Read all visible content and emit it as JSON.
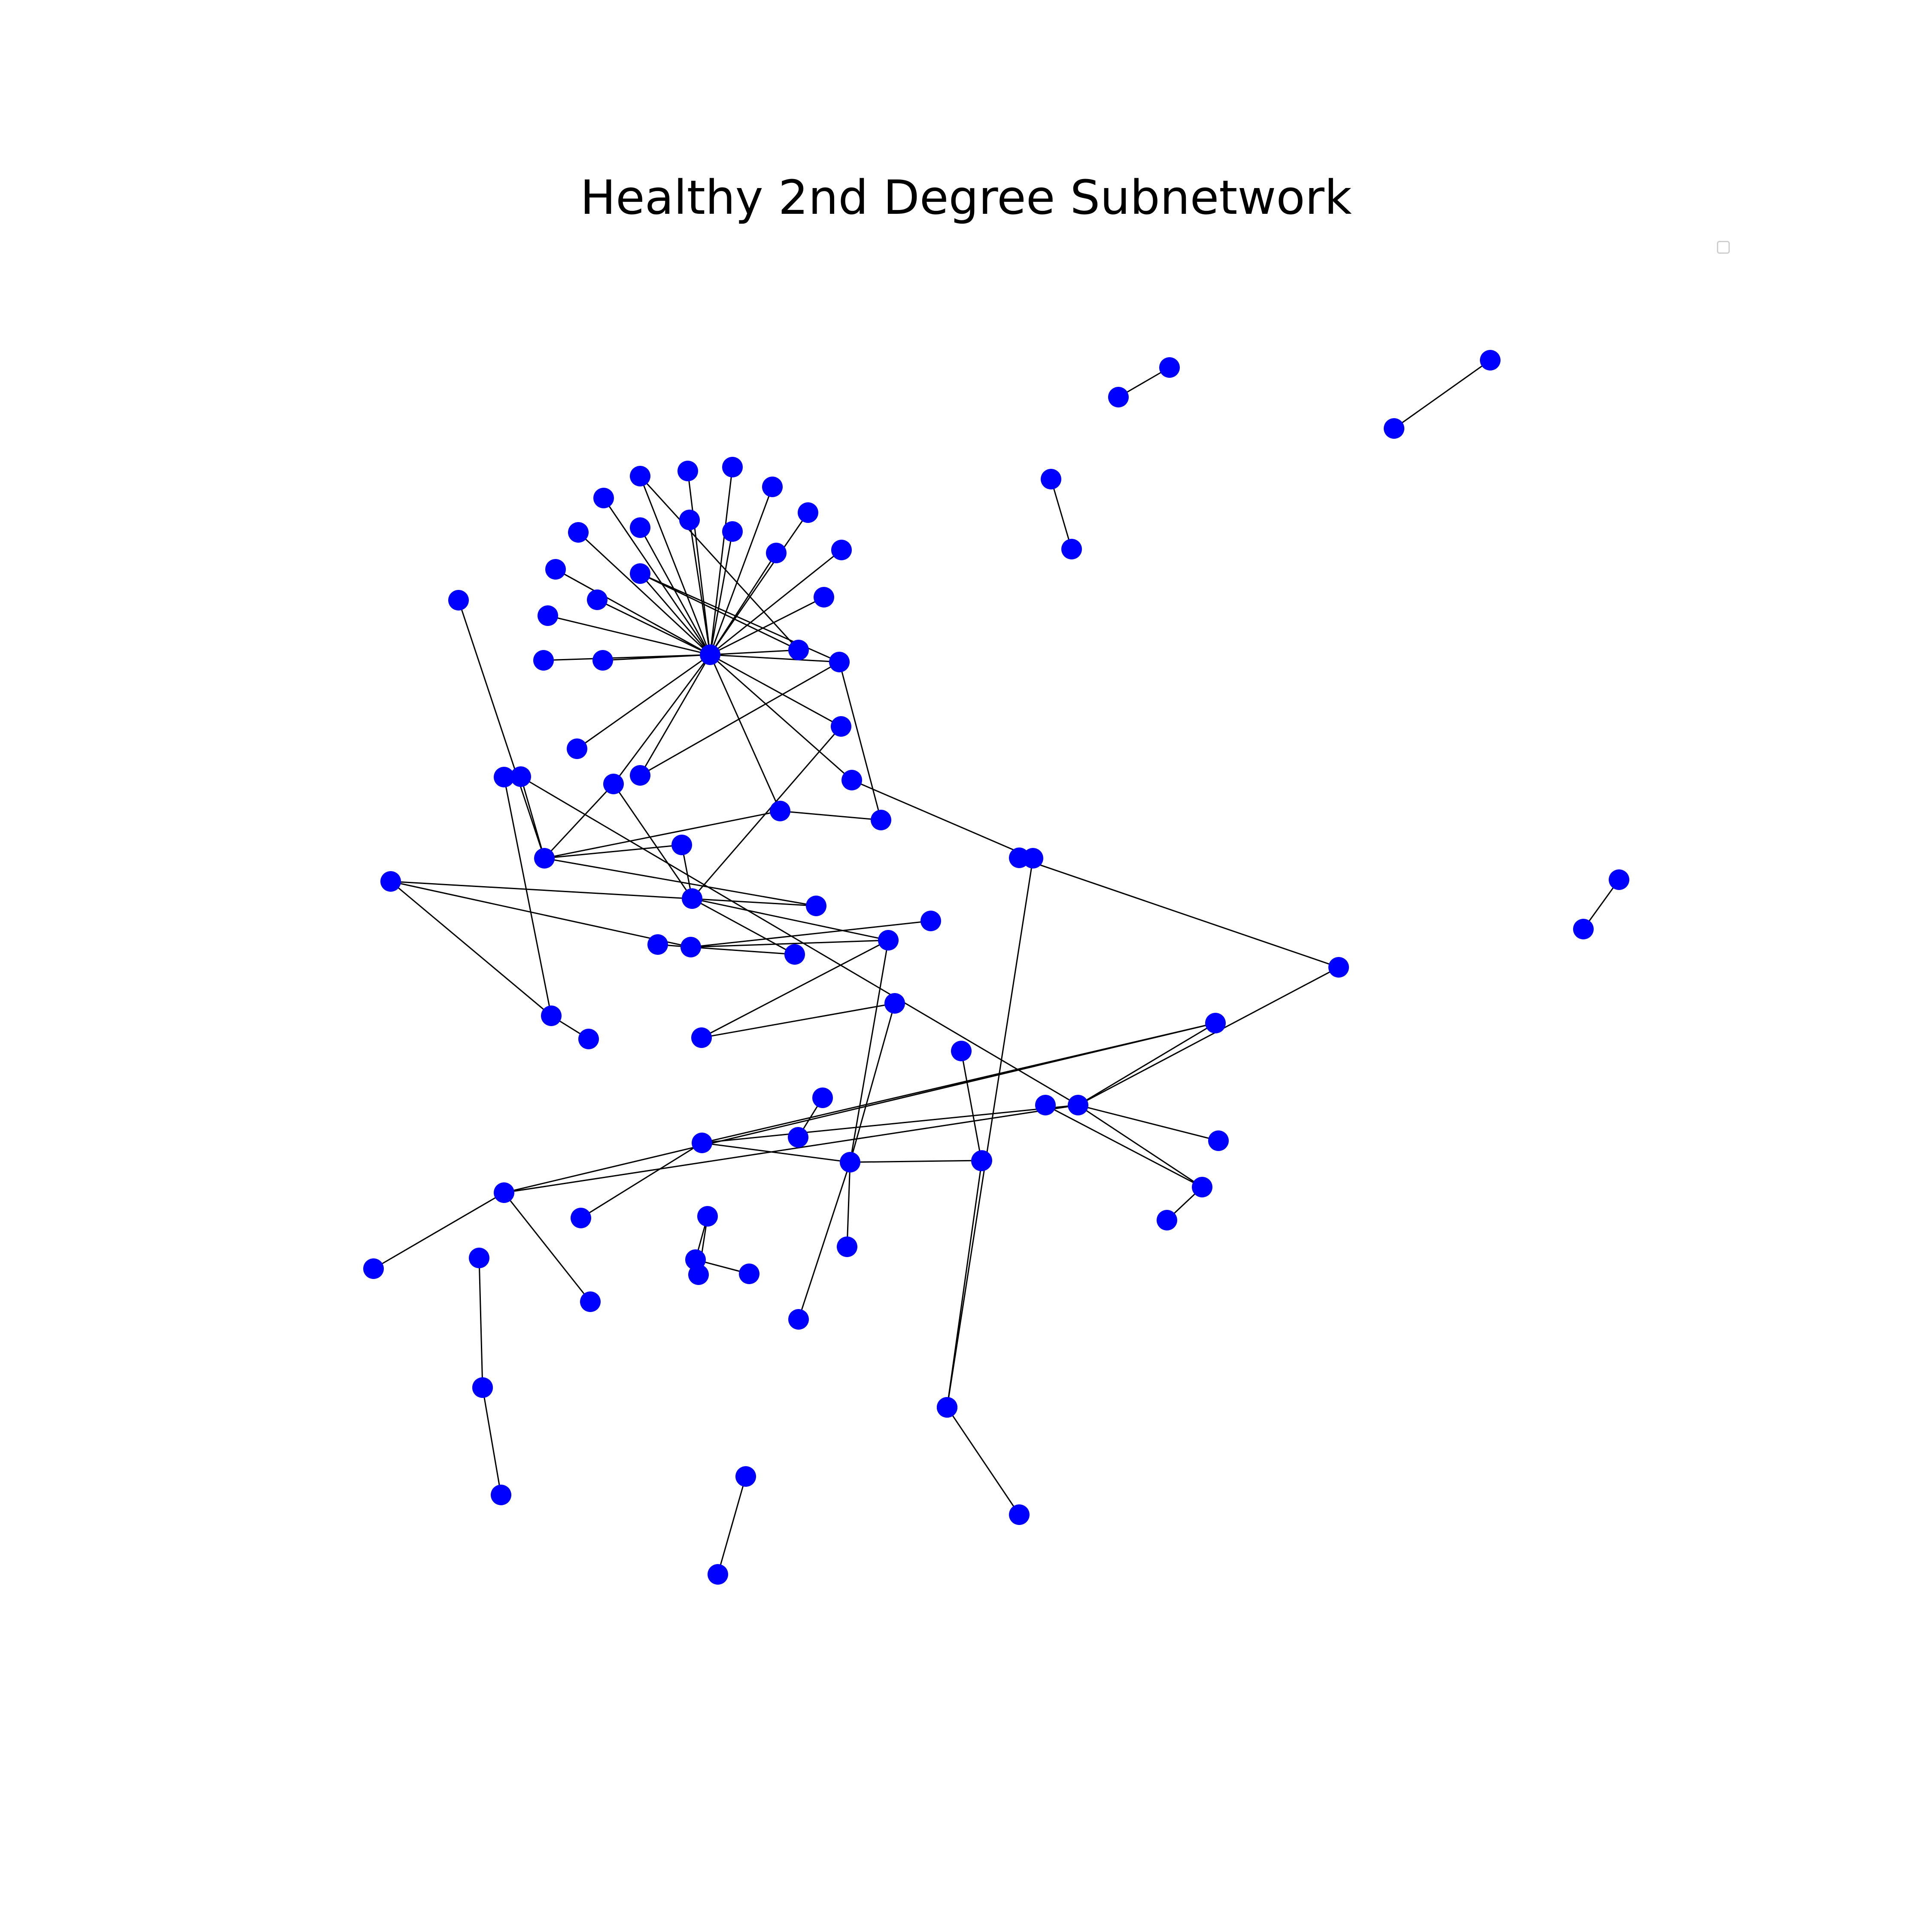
{
  "title": "Healthy 2nd Degree Subnetwork",
  "node_color": "#0000ff",
  "edge_color": "#000000",
  "legend": {
    "visible": true,
    "entries": []
  },
  "edges": [
    [
      "n0",
      "n1"
    ],
    [
      "n0",
      "n2"
    ],
    [
      "n0",
      "n3"
    ],
    [
      "n0",
      "n4"
    ],
    [
      "n0",
      "n5"
    ],
    [
      "n0",
      "n6"
    ],
    [
      "n0",
      "n7"
    ],
    [
      "n0",
      "n8"
    ],
    [
      "n0",
      "n9"
    ],
    [
      "n0",
      "n10"
    ],
    [
      "n0",
      "n11"
    ],
    [
      "n0",
      "n12"
    ],
    [
      "n0",
      "n13"
    ],
    [
      "n0",
      "n14"
    ],
    [
      "n0",
      "n15"
    ],
    [
      "n0",
      "n16"
    ],
    [
      "n0",
      "n17"
    ],
    [
      "n0",
      "n18"
    ],
    [
      "n0",
      "n19"
    ],
    [
      "n0",
      "n20"
    ],
    [
      "n0",
      "n21"
    ],
    [
      "n0",
      "n22"
    ],
    [
      "n0",
      "n23"
    ],
    [
      "n0",
      "n24"
    ],
    [
      "n0",
      "n25"
    ],
    [
      "n0",
      "n26"
    ],
    [
      "n0",
      "n27"
    ],
    [
      "n8",
      "n20"
    ],
    [
      "n19",
      "n20"
    ],
    [
      "n19",
      "n21"
    ],
    [
      "n21",
      "n27"
    ],
    [
      "n21",
      "n40"
    ],
    [
      "n24",
      "n29"
    ],
    [
      "n24",
      "n40"
    ],
    [
      "n23",
      "n41"
    ],
    [
      "n26",
      "n29"
    ],
    [
      "n26",
      "n31"
    ],
    [
      "n28",
      "n29"
    ],
    [
      "n29",
      "n30"
    ],
    [
      "n29",
      "n32"
    ],
    [
      "n29",
      "n39"
    ],
    [
      "n30",
      "n31"
    ],
    [
      "n31",
      "n22"
    ],
    [
      "n31",
      "n36"
    ],
    [
      "n31",
      "n38"
    ],
    [
      "n37",
      "n34"
    ],
    [
      "n38",
      "n34"
    ],
    [
      "n34",
      "n33"
    ],
    [
      "n34",
      "n36"
    ],
    [
      "n35",
      "n34"
    ],
    [
      "n32",
      "n51"
    ],
    [
      "n51",
      "n54"
    ],
    [
      "n51",
      "n55"
    ],
    [
      "n51",
      "n50"
    ],
    [
      "n51",
      "n58"
    ],
    [
      "n51",
      "n60"
    ],
    [
      "n51",
      "n59"
    ],
    [
      "n52",
      "n49"
    ],
    [
      "n52",
      "n53"
    ],
    [
      "n36",
      "n53"
    ],
    [
      "n39",
      "n33"
    ],
    [
      "n33",
      "n42"
    ],
    [
      "n42",
      "n43"
    ],
    [
      "n42",
      "n44"
    ],
    [
      "n45",
      "n46"
    ],
    [
      "n47",
      "n48"
    ],
    [
      "n36",
      "n49"
    ],
    [
      "n49",
      "n56"
    ],
    [
      "n49",
      "n50"
    ],
    [
      "n50",
      "n57"
    ],
    [
      "n50",
      "n58"
    ],
    [
      "n58",
      "n59"
    ],
    [
      "n59",
      "n72"
    ],
    [
      "n59",
      "n73"
    ],
    [
      "n60",
      "n65"
    ],
    [
      "n60",
      "n66"
    ],
    [
      "n64",
      "n61"
    ],
    [
      "n64",
      "n62"
    ],
    [
      "n62",
      "n63"
    ],
    [
      "n49",
      "n67"
    ],
    [
      "n49",
      "n69"
    ],
    [
      "n56",
      "n70"
    ],
    [
      "n55",
      "n68"
    ],
    [
      "n71",
      "n41"
    ],
    [
      "n74",
      "n75"
    ],
    [
      "n76",
      "n77"
    ],
    [
      "n78",
      "n79"
    ],
    [
      "n80",
      "n81"
    ],
    [
      "n82",
      "n83"
    ],
    [
      "n84",
      "n85"
    ],
    [
      "n86",
      "n87"
    ]
  ]
}
